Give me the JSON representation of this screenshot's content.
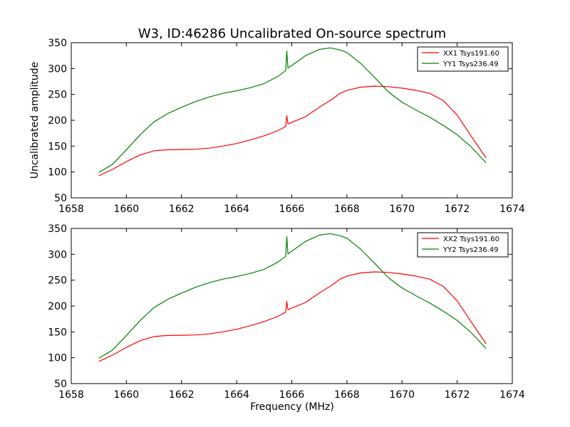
{
  "figure": {
    "title": "W3, ID:46286 Uncalibrated On-source spectrum",
    "xlabel": "Frequency (MHz)",
    "ylabel": "Uncalibrated amplitude",
    "colors": {
      "XX": "#ff0000",
      "YY": "#008000"
    }
  },
  "chart_data": [
    {
      "type": "line",
      "xlim": [
        1658,
        1674
      ],
      "ylim": [
        50,
        350
      ],
      "xticks": [
        1658,
        1660,
        1662,
        1664,
        1666,
        1668,
        1670,
        1672,
        1674
      ],
      "yticks": [
        50,
        100,
        150,
        200,
        250,
        300,
        350
      ],
      "legend_position": "top-right",
      "series": [
        {
          "name": "XX1 Tsys191.60",
          "color": "#ff0000",
          "points": [
            [
              1659.0,
              93
            ],
            [
              1659.5,
              105
            ],
            [
              1660.0,
              120
            ],
            [
              1660.5,
              133
            ],
            [
              1661.0,
              141
            ],
            [
              1661.5,
              143
            ],
            [
              1662.0,
              143.5
            ],
            [
              1662.5,
              144
            ],
            [
              1663.0,
              146
            ],
            [
              1663.5,
              150
            ],
            [
              1664.0,
              155
            ],
            [
              1664.5,
              162
            ],
            [
              1665.0,
              170
            ],
            [
              1665.5,
              180
            ],
            [
              1665.78,
              188
            ],
            [
              1665.82,
              209
            ],
            [
              1665.86,
              193
            ],
            [
              1666.0,
              196
            ],
            [
              1666.5,
              207
            ],
            [
              1667.0,
              225
            ],
            [
              1667.5,
              242
            ],
            [
              1667.75,
              252
            ],
            [
              1668.0,
              258
            ],
            [
              1668.5,
              264
            ],
            [
              1669.0,
              266
            ],
            [
              1669.5,
              265
            ],
            [
              1670.0,
              262
            ],
            [
              1670.5,
              258
            ],
            [
              1671.0,
              252
            ],
            [
              1671.5,
              238
            ],
            [
              1672.0,
              210
            ],
            [
              1672.5,
              170
            ],
            [
              1673.05,
              127
            ]
          ]
        },
        {
          "name": "YY1 Tsys236.49",
          "color": "#008000",
          "points": [
            [
              1659.0,
              99
            ],
            [
              1659.5,
              115
            ],
            [
              1660.0,
              143
            ],
            [
              1660.5,
              172
            ],
            [
              1661.0,
              197
            ],
            [
              1661.5,
              213
            ],
            [
              1662.0,
              225
            ],
            [
              1662.5,
              236
            ],
            [
              1663.0,
              245
            ],
            [
              1663.5,
              252
            ],
            [
              1664.0,
              257
            ],
            [
              1664.5,
              263
            ],
            [
              1665.0,
              271
            ],
            [
              1665.5,
              285
            ],
            [
              1665.78,
              296
            ],
            [
              1665.82,
              334
            ],
            [
              1665.86,
              301
            ],
            [
              1666.0,
              306
            ],
            [
              1666.5,
              325
            ],
            [
              1667.0,
              337
            ],
            [
              1667.4,
              340
            ],
            [
              1667.75,
              336
            ],
            [
              1668.0,
              331
            ],
            [
              1668.5,
              310
            ],
            [
              1669.0,
              283
            ],
            [
              1669.5,
              255
            ],
            [
              1670.0,
              235
            ],
            [
              1670.5,
              220
            ],
            [
              1671.0,
              206
            ],
            [
              1671.5,
              190
            ],
            [
              1672.0,
              172
            ],
            [
              1672.5,
              149
            ],
            [
              1673.05,
              118
            ]
          ]
        }
      ]
    },
    {
      "type": "line",
      "xlim": [
        1658,
        1674
      ],
      "ylim": [
        50,
        350
      ],
      "xticks": [
        1658,
        1660,
        1662,
        1664,
        1666,
        1668,
        1670,
        1672,
        1674
      ],
      "yticks": [
        50,
        100,
        150,
        200,
        250,
        300,
        350
      ],
      "legend_position": "top-right",
      "series": [
        {
          "name": "XX2 Tsys191.60",
          "color": "#ff0000",
          "points": [
            [
              1659.0,
              93
            ],
            [
              1659.5,
              105
            ],
            [
              1660.0,
              120
            ],
            [
              1660.5,
              133
            ],
            [
              1661.0,
              141
            ],
            [
              1661.5,
              143
            ],
            [
              1662.0,
              143.5
            ],
            [
              1662.5,
              144
            ],
            [
              1663.0,
              146
            ],
            [
              1663.5,
              150
            ],
            [
              1664.0,
              155
            ],
            [
              1664.5,
              162
            ],
            [
              1665.0,
              170
            ],
            [
              1665.5,
              180
            ],
            [
              1665.78,
              188
            ],
            [
              1665.82,
              209
            ],
            [
              1665.86,
              193
            ],
            [
              1666.0,
              196
            ],
            [
              1666.5,
              207
            ],
            [
              1667.0,
              225
            ],
            [
              1667.5,
              242
            ],
            [
              1667.75,
              252
            ],
            [
              1668.0,
              258
            ],
            [
              1668.5,
              264
            ],
            [
              1669.0,
              266
            ],
            [
              1669.5,
              265
            ],
            [
              1670.0,
              262
            ],
            [
              1670.5,
              258
            ],
            [
              1671.0,
              252
            ],
            [
              1671.5,
              238
            ],
            [
              1672.0,
              210
            ],
            [
              1672.5,
              170
            ],
            [
              1673.05,
              127
            ]
          ]
        },
        {
          "name": "YY2 Tsys236.49",
          "color": "#008000",
          "points": [
            [
              1659.0,
              99
            ],
            [
              1659.5,
              115
            ],
            [
              1660.0,
              143
            ],
            [
              1660.5,
              172
            ],
            [
              1661.0,
              197
            ],
            [
              1661.5,
              213
            ],
            [
              1662.0,
              225
            ],
            [
              1662.5,
              236
            ],
            [
              1663.0,
              245
            ],
            [
              1663.5,
              252
            ],
            [
              1664.0,
              257
            ],
            [
              1664.5,
              263
            ],
            [
              1665.0,
              271
            ],
            [
              1665.5,
              285
            ],
            [
              1665.78,
              296
            ],
            [
              1665.82,
              334
            ],
            [
              1665.86,
              301
            ],
            [
              1666.0,
              306
            ],
            [
              1666.5,
              325
            ],
            [
              1667.0,
              337
            ],
            [
              1667.4,
              340
            ],
            [
              1667.75,
              336
            ],
            [
              1668.0,
              331
            ],
            [
              1668.5,
              310
            ],
            [
              1669.0,
              283
            ],
            [
              1669.5,
              255
            ],
            [
              1670.0,
              235
            ],
            [
              1670.5,
              220
            ],
            [
              1671.0,
              206
            ],
            [
              1671.5,
              190
            ],
            [
              1672.0,
              172
            ],
            [
              1672.5,
              149
            ],
            [
              1673.05,
              118
            ]
          ]
        }
      ]
    }
  ]
}
